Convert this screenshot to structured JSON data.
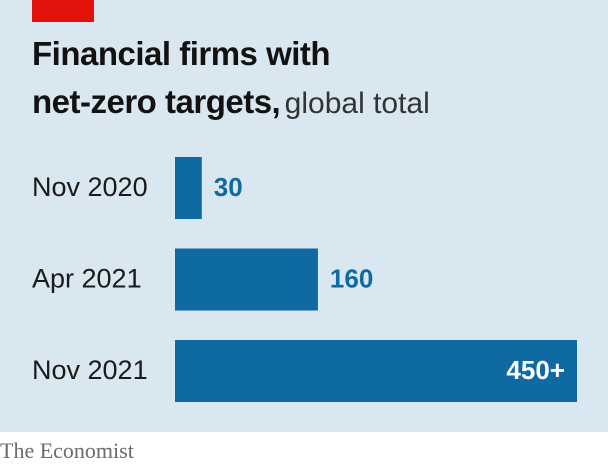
{
  "chart_data": {
    "type": "bar",
    "orientation": "horizontal",
    "title": [
      "Financial firms with",
      "net-zero targets,"
    ],
    "subtitle": "global total",
    "categories": [
      "Nov 2020",
      "Apr 2021",
      "Nov 2021"
    ],
    "values": [
      30,
      160,
      450
    ],
    "value_labels": [
      "30",
      "160",
      "450+"
    ],
    "color": "#0f6aa1",
    "source": "The Economist"
  }
}
